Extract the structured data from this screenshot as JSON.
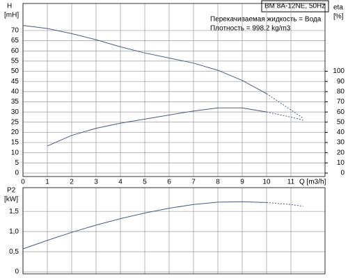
{
  "title": "BM 8A-12NE, 50Hz",
  "annotations": [
    "Перекачиваемая жидкость = Вода",
    "Плотность = 998.2 kg/m3"
  ],
  "chart_data": [
    {
      "type": "line",
      "x_label": "Q [m3/h]",
      "y_label": [
        "H",
        "[mH]"
      ],
      "y2_label": [
        "eta",
        "[%]"
      ],
      "x": [
        0,
        1,
        2,
        3,
        4,
        5,
        6,
        7,
        8,
        9,
        10,
        11,
        11.5
      ],
      "xlim": [
        0,
        12.4
      ],
      "xticks": [
        0,
        1,
        2,
        3,
        4,
        5,
        6,
        7,
        8,
        9,
        10,
        11
      ],
      "ylim": [
        -1.7,
        83.3
      ],
      "yticks": [
        0,
        5,
        10,
        15,
        20,
        25,
        30,
        35,
        40,
        45,
        50,
        55,
        60,
        65,
        70
      ],
      "y2lim": [
        -3.4,
        166.6
      ],
      "y2ticks": [
        0,
        10,
        20,
        30,
        40,
        50,
        60,
        70,
        80,
        90,
        100
      ],
      "grid": true,
      "dash_from": 10,
      "series": [
        {
          "color": "#4a5a7a",
          "values": [
            72.5,
            71,
            68.5,
            65.5,
            62,
            59,
            56.5,
            54,
            50.5,
            45.5,
            39,
            31,
            27
          ]
        },
        {
          "color": "#4a5a7a",
          "axis": "y2",
          "values": [
            null,
            26.6,
            37,
            44,
            49,
            53,
            57,
            61,
            64,
            64,
            60,
            55,
            52
          ]
        }
      ]
    },
    {
      "type": "line",
      "y_label": [
        "P2",
        "[kW]"
      ],
      "x": [
        0,
        1,
        2,
        3,
        4,
        5,
        6,
        7,
        8,
        9,
        10,
        11,
        11.5
      ],
      "xlim": [
        0,
        12.4
      ],
      "xticks": [
        0,
        1,
        2,
        3,
        4,
        5,
        6,
        7,
        8,
        9,
        10,
        11
      ],
      "ylim": [
        -0.05,
        2.09
      ],
      "yticks": [
        {
          "value": 0,
          "label": "0"
        },
        {
          "value": 0.5,
          "label": "0,5"
        },
        {
          "value": 1,
          "label": "1,0"
        },
        {
          "value": 1.5,
          "label": "1,5"
        }
      ],
      "grid": true,
      "dash_from": 10,
      "series": [
        {
          "color": "#4a5a7a",
          "values": [
            0.57,
            0.78,
            0.98,
            1.16,
            1.32,
            1.46,
            1.58,
            1.67,
            1.73,
            1.74,
            1.72,
            1.67,
            1.63
          ]
        }
      ]
    }
  ]
}
